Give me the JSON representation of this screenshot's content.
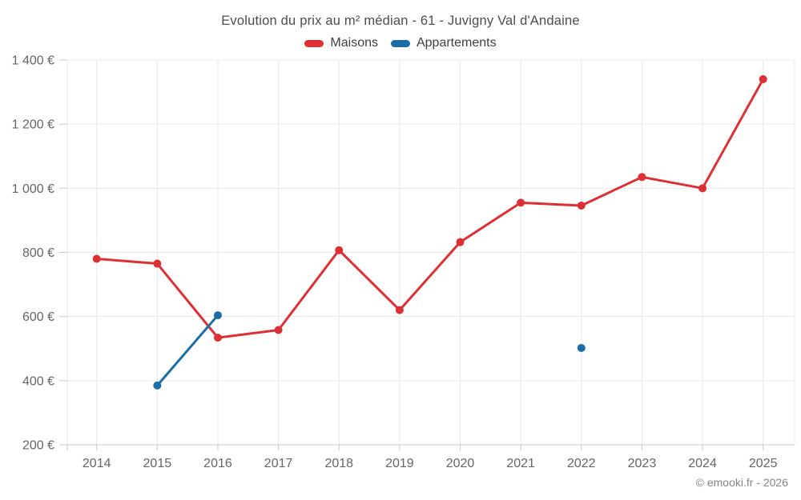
{
  "header": {
    "title": "Evolution du prix au m² médian - 61 - Juvigny Val d'Andaine"
  },
  "legend": {
    "items": [
      {
        "label": "Maisons",
        "color": "#dc3034"
      },
      {
        "label": "Appartements",
        "color": "#1b6da5"
      }
    ]
  },
  "footer": {
    "copyright": "© emooki.fr - 2026"
  },
  "colors": {
    "grid": "#e9e9e9",
    "axis_line": "#c9c9c9",
    "tick_label": "#666666",
    "title_text": "#4d4d4d",
    "copyright_text": "#858585",
    "maisons": "#dc3034",
    "appartements": "#1b6da5"
  },
  "chart_data": {
    "type": "line",
    "title": "Evolution du prix au m² médian - 61 - Juvigny Val d'Andaine",
    "xlabel": "",
    "ylabel": "",
    "categories": [
      2014,
      2015,
      2016,
      2017,
      2018,
      2019,
      2020,
      2021,
      2022,
      2023,
      2024,
      2025
    ],
    "xtick_labels": [
      "2014",
      "2015",
      "2016",
      "2017",
      "2018",
      "2019",
      "2020",
      "2021",
      "2022",
      "2023",
      "2024",
      "2025"
    ],
    "series": [
      {
        "name": "Maisons",
        "color": "#dc3034",
        "values": [
          780,
          765,
          534,
          558,
          807,
          620,
          832,
          955,
          946,
          1035,
          1000,
          1340
        ]
      },
      {
        "name": "Appartements",
        "color": "#1b6da5",
        "values": [
          null,
          385,
          604,
          null,
          null,
          null,
          null,
          null,
          502,
          null,
          null,
          null
        ]
      }
    ],
    "ylim": [
      200,
      1400
    ],
    "yticks": [
      {
        "value": 200,
        "label": "200 €"
      },
      {
        "value": 400,
        "label": "400 €"
      },
      {
        "value": 600,
        "label": "600 €"
      },
      {
        "value": 800,
        "label": "800 €"
      },
      {
        "value": 1000,
        "label": "1 000 €"
      },
      {
        "value": 1200,
        "label": "1 200 €"
      },
      {
        "value": 1400,
        "label": "1 400 €"
      }
    ],
    "grid": true,
    "legend_position": "top"
  }
}
